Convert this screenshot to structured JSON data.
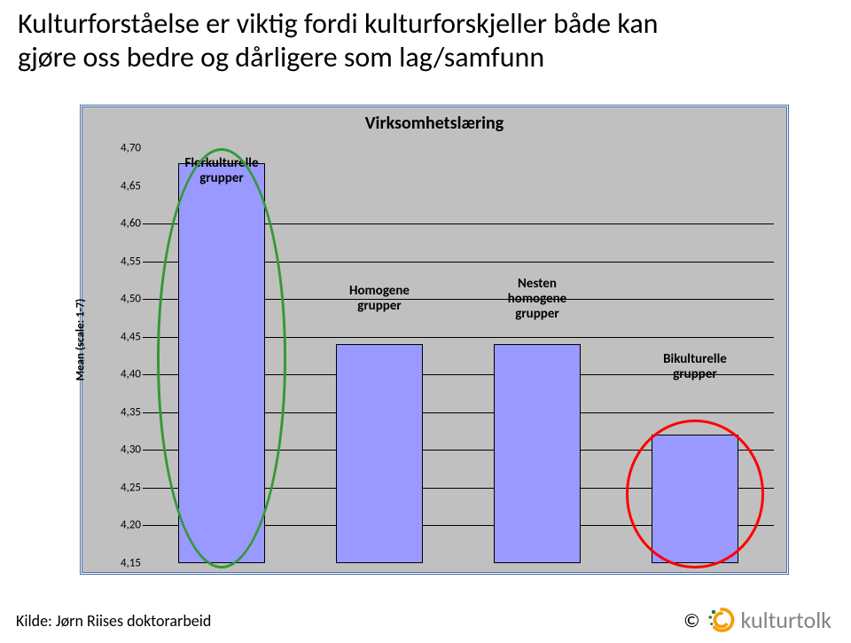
{
  "title": {
    "line1": "Kulturforståelse er viktig fordi kulturforskjeller både kan",
    "line2": "gjøre oss bedre og dårligere som lag/samfunn",
    "fontsize": 32,
    "color": "#000000"
  },
  "chart": {
    "type": "bar",
    "title": "Virksomhetslæring",
    "title_fontsize": 20,
    "ylabel": "Mean (scale: 1-7)",
    "label_fontsize": 13,
    "ylim": [
      4.15,
      4.7
    ],
    "ytick_step": 0.05,
    "yticks": [
      "4,15",
      "4,20",
      "4,25",
      "4,30",
      "4,35",
      "4,40",
      "4,45",
      "4,50",
      "4,55",
      "4,60",
      "4,65",
      "4,70"
    ],
    "grid_show_at": [
      4.2,
      4.25,
      4.3,
      4.35,
      4.4,
      4.45,
      4.5,
      4.55,
      4.6
    ],
    "background_color": "#c0c0c0",
    "grid_color": "#000000",
    "frame_color": "#4a6ea9",
    "bar_width": 0.55,
    "bars": [
      {
        "category": "Flerkulturelle grupper",
        "value": 4.68,
        "color": "#9999ff",
        "label_above_top": true,
        "label_top_y": 4.69
      },
      {
        "category": "Homogene grupper",
        "value": 4.44,
        "color": "#9999ff",
        "label_above_top": false,
        "label_top_y": 4.52
      },
      {
        "category": "Nesten homogene grupper",
        "value": 4.44,
        "color": "#9999ff",
        "label_above_top": false,
        "label_top_y": 4.53
      },
      {
        "category": "Bikulturelle grupper",
        "value": 4.32,
        "color": "#9999ff",
        "label_above_top": false,
        "label_top_y": 4.43
      }
    ],
    "ellipses": [
      {
        "around_bar_index": 0,
        "color": "#339933",
        "top_extra": 0.02,
        "bottom_extra": 0.0,
        "width_factor": 1.5
      },
      {
        "around_bar_index": 3,
        "color": "#ff0000",
        "top_extra": 0.02,
        "bottom_extra": 0.0,
        "width_factor": 1.6
      }
    ]
  },
  "footer": {
    "source": "Kilde: Jørn Riises doktorarbeid",
    "copyright": "©",
    "brand": "kulturtolk",
    "brand_color": "#838383",
    "logo_colors": {
      "swirl": "#f59e0b",
      "dots": "#1f7a3a"
    }
  }
}
